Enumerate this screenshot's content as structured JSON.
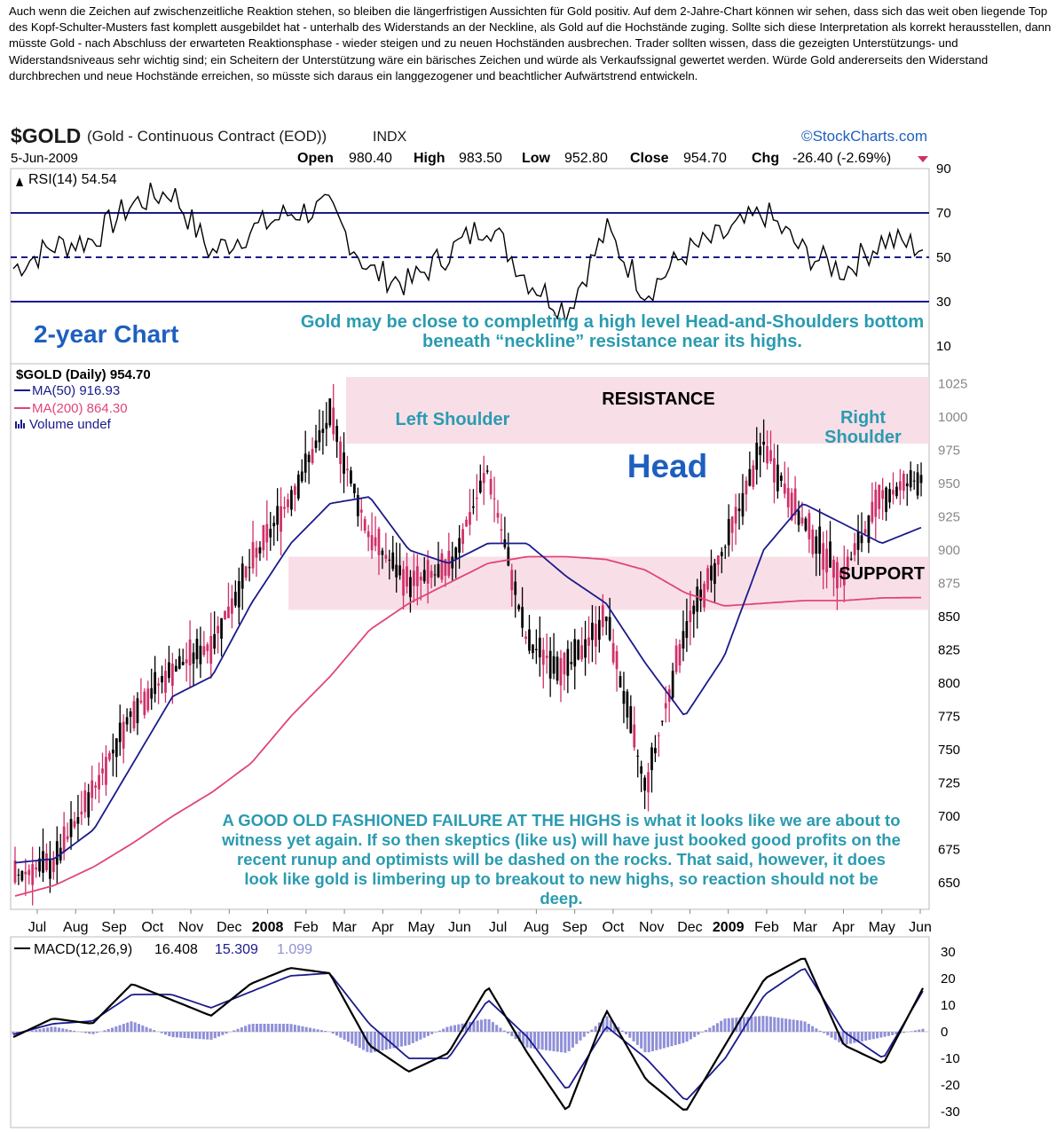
{
  "intro": {
    "text": "Auch wenn die Zeichen auf zwischenzeitliche Reaktion stehen, so bleiben die längerfristigen Aussichten für Gold positiv. Auf dem 2-Jahre-Chart können wir sehen, dass sich das weit oben liegende Top des Kopf-Schulter-Musters fast komplett ausgebildet hat - unterhalb des Widerstands an der Neckline, als Gold auf die Hochstände zuging. Sollte sich diese Interpretation als korrekt herausstellen, dann müsste Gold - nach Abschluss der erwarteten Reaktionsphase - wieder steigen und zu neuen Hochständen ausbrechen. Trader sollten wissen, dass die gezeigten Unterstützungs- und Widerstandsniveaus sehr wichtig sind; ein Scheitern der Unterstützung wäre ein bärisches Zeichen und würde als Verkaufssignal gewertet werden. Würde Gold andererseits den Widerstand durchbrechen und neue Hochstände erreichen, so müsste sich daraus ein langgezogener und beachtlicher Aufwärtstrend entwickeln."
  },
  "header": {
    "symbol": "$GOLD",
    "description": "(Gold - Continuous Contract (EOD))",
    "exchange": "INDX",
    "brand": "©StockCharts.com",
    "date": "5-Jun-2009",
    "open_label": "Open",
    "open": "980.40",
    "high_label": "High",
    "high": "983.50",
    "low_label": "Low",
    "low": "952.80",
    "close_label": "Close",
    "close": "954.70",
    "chg_label": "Chg",
    "chg": "-26.40 (-2.69%)"
  },
  "colors": {
    "navy": "#1a1a8c",
    "teal": "#2a9bb0",
    "blue_text": "#1e5fbf",
    "pink": "#e0457a",
    "band": "#f7d9e3",
    "candle": "#000000",
    "candle_pink": "#d0306a",
    "macd_hist": "#8f8fd8"
  },
  "chart_data": [
    {
      "type": "line",
      "title": "RSI(14) 54.54",
      "legend": "RSI(14)",
      "last_value": 54.54,
      "ylim": [
        10,
        90
      ],
      "yticks": [
        10,
        30,
        50,
        70,
        90
      ],
      "reference_lines": [
        30,
        50,
        70
      ],
      "x": [
        "2007-07",
        "2007-08",
        "2007-09",
        "2007-10",
        "2007-11",
        "2007-12",
        "2008-01",
        "2008-02",
        "2008-03",
        "2008-04",
        "2008-05",
        "2008-06",
        "2008-07",
        "2008-08",
        "2008-09",
        "2008-10",
        "2008-11",
        "2008-12",
        "2009-01",
        "2009-02",
        "2009-03",
        "2009-04",
        "2009-05",
        "2009-06"
      ],
      "values": [
        45,
        55,
        58,
        74,
        80,
        52,
        62,
        70,
        72,
        44,
        38,
        52,
        66,
        40,
        26,
        62,
        34,
        52,
        60,
        70,
        52,
        44,
        58,
        54.5
      ]
    },
    {
      "type": "line",
      "title": "$GOLD (Daily) 954.70",
      "subtitle": "2-year Chart",
      "legend": [
        "$GOLD (Daily) 954.70",
        "MA(50) 916.93",
        "MA(200) 864.30",
        "Volume undef"
      ],
      "ylim": [
        630,
        1040
      ],
      "yticks": [
        650,
        675,
        700,
        725,
        750,
        775,
        800,
        825,
        850,
        875,
        900,
        925,
        950,
        975,
        1000,
        1025
      ],
      "xticks": [
        "Jul",
        "Aug",
        "Sep",
        "Oct",
        "Nov",
        "Dec",
        "2008",
        "Feb",
        "Mar",
        "Apr",
        "May",
        "Jun",
        "Jul",
        "Aug",
        "Sep",
        "Oct",
        "Nov",
        "Dec",
        "2009",
        "Feb",
        "Mar",
        "Apr",
        "May",
        "Jun"
      ],
      "series": [
        {
          "name": "$GOLD (Daily) 954.70",
          "x": [
            "2007-07",
            "2007-08",
            "2007-09",
            "2007-10",
            "2007-11",
            "2007-12",
            "2008-01",
            "2008-02",
            "2008-03",
            "2008-04",
            "2008-05",
            "2008-06",
            "2008-07",
            "2008-08",
            "2008-09",
            "2008-10",
            "2008-11",
            "2008-12",
            "2009-01",
            "2009-02",
            "2009-03",
            "2009-04",
            "2009-05",
            "2009-06"
          ],
          "values": [
            655,
            665,
            720,
            780,
            810,
            830,
            890,
            940,
            1000,
            910,
            875,
            885,
            960,
            830,
            810,
            850,
            720,
            840,
            900,
            980,
            920,
            880,
            940,
            954.7
          ]
        },
        {
          "name": "MA(50) 916.93",
          "values": [
            665,
            668,
            690,
            740,
            790,
            805,
            860,
            905,
            935,
            940,
            900,
            890,
            905,
            905,
            880,
            860,
            815,
            775,
            820,
            900,
            935,
            920,
            905,
            916.9
          ]
        },
        {
          "name": "MA(200) 864.30",
          "values": [
            640,
            648,
            662,
            680,
            700,
            718,
            740,
            775,
            805,
            840,
            860,
            875,
            890,
            895,
            895,
            893,
            885,
            868,
            858,
            860,
            862,
            862,
            864,
            864.3
          ]
        }
      ],
      "bands": [
        {
          "label": "RESISTANCE",
          "from": 980,
          "to": 1030
        },
        {
          "label": "SUPPORT",
          "from": 855,
          "to": 895
        }
      ],
      "annotations": {
        "head_and_shoulders": "Gold may be close to completing a high level Head-and-Shoulders bottom beneath “neckline” resistance near its highs.",
        "left_shoulder": "Left Shoulder",
        "head": "Head",
        "right_shoulder": "Right Shoulder",
        "failure_note": "A GOOD OLD FASHIONED FAILURE AT THE HIGHS is what it looks like we are about to witness yet again. If so then skeptics (like us) will have just booked good profits on the recent runup and optimists will be dashed on the rocks. That said, however, it does look like gold is limbering up to breakout to new highs, so reaction should not be deep."
      }
    },
    {
      "type": "line",
      "title": "MACD(12,26,9) 16.408, 15.309, 1.099",
      "legend": [
        "MACD(12,26,9)",
        "16.408",
        "15.309",
        "1.099"
      ],
      "ylim": [
        -30,
        30
      ],
      "yticks": [
        -30,
        -20,
        -10,
        0,
        10,
        20,
        30
      ],
      "x": [
        "2007-07",
        "2007-08",
        "2007-09",
        "2007-10",
        "2007-11",
        "2007-12",
        "2008-01",
        "2008-02",
        "2008-03",
        "2008-04",
        "2008-05",
        "2008-06",
        "2008-07",
        "2008-08",
        "2008-09",
        "2008-10",
        "2008-11",
        "2008-12",
        "2009-01",
        "2009-02",
        "2009-03",
        "2009-04",
        "2009-05",
        "2009-06"
      ],
      "series": [
        {
          "name": "MACD",
          "values": [
            -2,
            5,
            3,
            18,
            12,
            6,
            18,
            24,
            22,
            -5,
            -15,
            -8,
            17,
            -8,
            -30,
            8,
            -18,
            -30,
            -5,
            20,
            28,
            -5,
            -12,
            16.4
          ]
        },
        {
          "name": "Signal",
          "values": [
            -1,
            3,
            4,
            14,
            14,
            9,
            15,
            21,
            22,
            3,
            -10,
            -10,
            12,
            -2,
            -22,
            2,
            -10,
            -26,
            -10,
            14,
            24,
            0,
            -10,
            15.3
          ]
        },
        {
          "name": "Histogram",
          "values": [
            -1,
            2,
            -1,
            4,
            -2,
            -3,
            3,
            3,
            0,
            -8,
            -5,
            2,
            5,
            -6,
            -8,
            6,
            -8,
            -4,
            5,
            6,
            4,
            -5,
            -2,
            1.1
          ]
        }
      ]
    }
  ]
}
